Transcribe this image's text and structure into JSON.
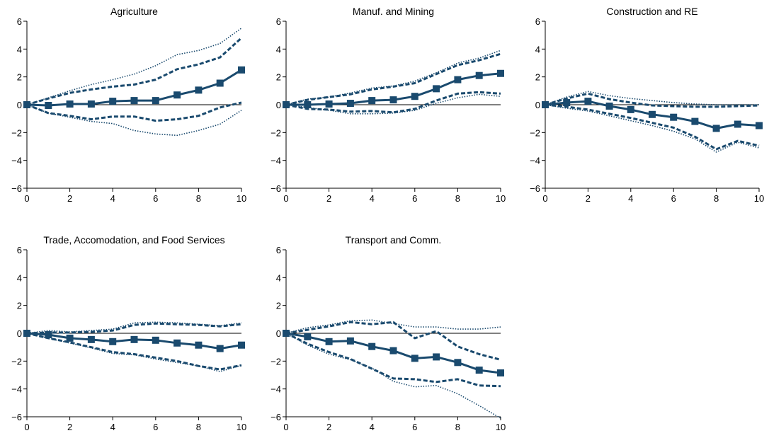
{
  "colors": {
    "series": "#1a4a6e",
    "axis": "#000000",
    "background": "#ffffff"
  },
  "chart_data": [
    {
      "type": "line",
      "title": "Agriculture",
      "x": [
        0,
        1,
        2,
        3,
        4,
        5,
        6,
        7,
        8,
        9,
        10
      ],
      "xlim": [
        0,
        10
      ],
      "ylim": [
        -6,
        6
      ],
      "xticks": [
        0,
        2,
        4,
        6,
        8,
        10
      ],
      "yticks": [
        6,
        4,
        2,
        0,
        -2,
        -4,
        -6
      ],
      "ytick_labels": [
        "6",
        "4",
        "2",
        "0",
        "−2",
        "−4",
        "−6"
      ],
      "zero_line": true,
      "grid": false,
      "series": [
        {
          "style": "solid-square",
          "values": [
            0,
            -0.05,
            0.05,
            0.05,
            0.25,
            0.3,
            0.3,
            0.7,
            1.05,
            1.55,
            2.5
          ]
        },
        {
          "style": "dashed",
          "values": [
            0,
            0.45,
            0.85,
            1.1,
            1.3,
            1.45,
            1.8,
            2.55,
            2.9,
            3.4,
            4.8
          ]
        },
        {
          "style": "dashed",
          "values": [
            0,
            -0.6,
            -0.8,
            -1.05,
            -0.85,
            -0.85,
            -1.15,
            -1.05,
            -0.8,
            -0.2,
            0.15
          ]
        },
        {
          "style": "dotted",
          "values": [
            0,
            0.5,
            1.0,
            1.45,
            1.8,
            2.2,
            2.8,
            3.6,
            3.9,
            4.4,
            5.5
          ]
        },
        {
          "style": "dotted",
          "values": [
            0,
            -0.6,
            -0.9,
            -1.2,
            -1.35,
            -1.85,
            -2.1,
            -2.2,
            -1.85,
            -1.4,
            -0.4
          ]
        }
      ]
    },
    {
      "type": "line",
      "title": "Manuf. and Mining",
      "x": [
        0,
        1,
        2,
        3,
        4,
        5,
        6,
        7,
        8,
        9,
        10
      ],
      "xlim": [
        0,
        10
      ],
      "ylim": [
        -6,
        6
      ],
      "xticks": [
        0,
        2,
        4,
        6,
        8,
        10
      ],
      "yticks": [
        6,
        4,
        2,
        0,
        -2,
        -4,
        -6
      ],
      "ytick_labels": [
        "6",
        "4",
        "2",
        "0",
        "−2",
        "−4",
        "−6"
      ],
      "zero_line": true,
      "grid": false,
      "series": [
        {
          "style": "solid-square",
          "values": [
            0,
            0.0,
            0.05,
            0.1,
            0.3,
            0.35,
            0.6,
            1.15,
            1.8,
            2.1,
            2.25
          ]
        },
        {
          "style": "dashed",
          "values": [
            0,
            0.35,
            0.55,
            0.75,
            1.1,
            1.3,
            1.55,
            2.2,
            2.85,
            3.2,
            3.65
          ]
        },
        {
          "style": "dashed",
          "values": [
            0,
            -0.3,
            -0.35,
            -0.5,
            -0.45,
            -0.55,
            -0.3,
            0.3,
            0.8,
            0.9,
            0.8
          ]
        },
        {
          "style": "dotted",
          "values": [
            0,
            0.4,
            0.55,
            0.85,
            1.2,
            1.35,
            1.7,
            2.3,
            3.0,
            3.35,
            3.9
          ]
        },
        {
          "style": "dotted",
          "values": [
            0,
            -0.2,
            -0.4,
            -0.65,
            -0.65,
            -0.6,
            -0.4,
            0.1,
            0.5,
            0.75,
            0.6
          ]
        }
      ]
    },
    {
      "type": "line",
      "title": "Construction and RE",
      "x": [
        0,
        1,
        2,
        3,
        4,
        5,
        6,
        7,
        8,
        9,
        10
      ],
      "xlim": [
        0,
        10
      ],
      "ylim": [
        -6,
        6
      ],
      "xticks": [
        0,
        2,
        4,
        6,
        8,
        10
      ],
      "yticks": [
        6,
        4,
        2,
        0,
        -2,
        -4,
        -6
      ],
      "ytick_labels": [
        "6",
        "4",
        "2",
        "0",
        "−2",
        "−4",
        "−6"
      ],
      "zero_line": true,
      "grid": false,
      "series": [
        {
          "style": "solid-square",
          "values": [
            0,
            0.15,
            0.25,
            -0.1,
            -0.35,
            -0.7,
            -0.9,
            -1.2,
            -1.7,
            -1.4,
            -1.5
          ]
        },
        {
          "style": "dashed",
          "values": [
            0,
            0.45,
            0.8,
            0.4,
            0.15,
            -0.05,
            -0.1,
            -0.15,
            -0.15,
            -0.1,
            -0.05
          ]
        },
        {
          "style": "dashed",
          "values": [
            0,
            -0.15,
            -0.35,
            -0.65,
            -0.95,
            -1.3,
            -1.65,
            -2.3,
            -3.2,
            -2.6,
            -2.95
          ]
        },
        {
          "style": "dotted",
          "values": [
            0,
            0.55,
            0.95,
            0.65,
            0.45,
            0.3,
            0.15,
            0.05,
            0.0,
            0.0,
            0.0
          ]
        },
        {
          "style": "dotted",
          "values": [
            0,
            -0.25,
            -0.45,
            -0.8,
            -1.15,
            -1.5,
            -1.9,
            -2.45,
            -3.4,
            -2.7,
            -3.1
          ]
        }
      ]
    },
    {
      "type": "line",
      "title": "Trade, Accomodation, and Food Services",
      "x": [
        0,
        1,
        2,
        3,
        4,
        5,
        6,
        7,
        8,
        9,
        10
      ],
      "xlim": [
        0,
        10
      ],
      "ylim": [
        -6,
        6
      ],
      "xticks": [
        0,
        2,
        4,
        6,
        8,
        10
      ],
      "yticks": [
        6,
        4,
        2,
        0,
        -2,
        -4,
        -6
      ],
      "ytick_labels": [
        "6",
        "4",
        "2",
        "0",
        "−2",
        "−4",
        "−6"
      ],
      "zero_line": true,
      "grid": false,
      "series": [
        {
          "style": "solid-square",
          "values": [
            0,
            -0.1,
            -0.35,
            -0.45,
            -0.6,
            -0.45,
            -0.5,
            -0.7,
            -0.85,
            -1.1,
            -0.85
          ]
        },
        {
          "style": "dashed",
          "values": [
            0,
            0.05,
            0.05,
            0.1,
            0.2,
            0.6,
            0.7,
            0.65,
            0.6,
            0.5,
            0.65
          ]
        },
        {
          "style": "dashed",
          "values": [
            0,
            -0.35,
            -0.65,
            -1.0,
            -1.35,
            -1.5,
            -1.75,
            -2.0,
            -2.35,
            -2.6,
            -2.3
          ]
        },
        {
          "style": "dotted",
          "values": [
            0,
            0.2,
            0.1,
            0.2,
            0.3,
            0.75,
            0.8,
            0.75,
            0.65,
            0.55,
            0.75
          ]
        },
        {
          "style": "dotted",
          "values": [
            0,
            -0.35,
            -0.7,
            -1.05,
            -1.45,
            -1.55,
            -1.85,
            -2.1,
            -2.35,
            -2.75,
            -2.3
          ]
        }
      ]
    },
    {
      "type": "line",
      "title": "Transport and Comm.",
      "x": [
        0,
        1,
        2,
        3,
        4,
        5,
        6,
        7,
        8,
        9,
        10
      ],
      "xlim": [
        0,
        10
      ],
      "ylim": [
        -6,
        6
      ],
      "xticks": [
        0,
        2,
        4,
        6,
        8,
        10
      ],
      "yticks": [
        6,
        4,
        2,
        0,
        -2,
        -4,
        -6
      ],
      "ytick_labels": [
        "6",
        "4",
        "2",
        "0",
        "−2",
        "−4",
        "−6"
      ],
      "zero_line": true,
      "grid": false,
      "series": [
        {
          "style": "solid-square",
          "values": [
            0,
            -0.25,
            -0.6,
            -0.55,
            -0.95,
            -1.25,
            -1.8,
            -1.7,
            -2.1,
            -2.65,
            -2.85
          ]
        },
        {
          "style": "dashed",
          "values": [
            0,
            0.25,
            0.5,
            0.8,
            0.65,
            0.8,
            -0.35,
            0.15,
            -0.95,
            -1.5,
            -1.9
          ]
        },
        {
          "style": "dashed",
          "values": [
            0,
            -0.75,
            -1.35,
            -1.85,
            -2.55,
            -3.25,
            -3.3,
            -3.5,
            -3.3,
            -3.75,
            -3.8
          ]
        },
        {
          "style": "dotted",
          "values": [
            0,
            0.4,
            0.6,
            0.9,
            0.95,
            0.7,
            0.45,
            0.45,
            0.3,
            0.3,
            0.45
          ]
        },
        {
          "style": "dotted",
          "values": [
            0,
            -0.85,
            -1.5,
            -1.9,
            -2.5,
            -3.45,
            -3.85,
            -3.75,
            -4.35,
            -5.2,
            -6.1
          ]
        }
      ]
    }
  ]
}
